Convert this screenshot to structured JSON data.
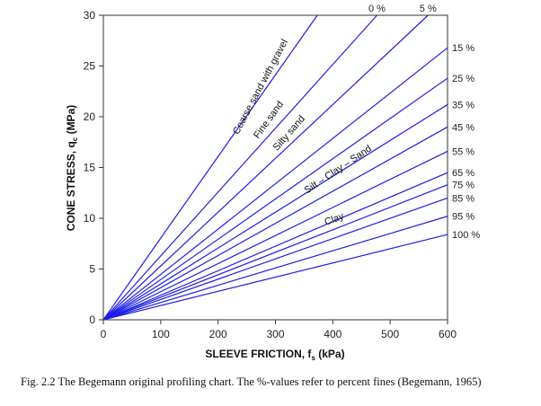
{
  "chart_data": {
    "type": "line",
    "xlabel": {
      "main": "SLEEVE FRICTION, f",
      "sub": "s",
      "unit": " (kPa)"
    },
    "ylabel": {
      "main": "CONE STRESS, q",
      "sub": "c",
      "unit": "  (MPa)"
    },
    "xlim": [
      0,
      600
    ],
    "ylim": [
      0,
      30
    ],
    "xticks": [
      0,
      100,
      200,
      300,
      400,
      500,
      600
    ],
    "yticks": [
      0,
      5,
      10,
      15,
      20,
      25,
      30
    ],
    "series": [
      {
        "name": "",
        "end": [
          373,
          30
        ]
      },
      {
        "name": "0 %",
        "end": [
          477,
          30
        ]
      },
      {
        "name": "5 %",
        "end": [
          566,
          30
        ]
      },
      {
        "name": "15 %",
        "end": [
          600,
          26.8
        ]
      },
      {
        "name": "25 %",
        "end": [
          600,
          23.8
        ]
      },
      {
        "name": "35 %",
        "end": [
          600,
          21.2
        ]
      },
      {
        "name": "45 %",
        "end": [
          600,
          19.0
        ]
      },
      {
        "name": "55 %",
        "end": [
          600,
          16.6
        ]
      },
      {
        "name": "65 %",
        "end": [
          600,
          14.5
        ]
      },
      {
        "name": "75 %",
        "end": [
          600,
          13.3
        ]
      },
      {
        "name": "85 %",
        "end": [
          600,
          12.0
        ]
      },
      {
        "name": "95 %",
        "end": [
          600,
          10.2
        ]
      },
      {
        "name": "100 %",
        "end": [
          600,
          8.4
        ]
      }
    ],
    "annotations": [
      {
        "text": "Coarse sand with gravel",
        "x": 235,
        "y": 18.2,
        "angle": -62
      },
      {
        "text": "Fine sand",
        "x": 270,
        "y": 17.8,
        "angle": -54
      },
      {
        "text": "Silty sand",
        "x": 303,
        "y": 16.6,
        "angle": -49
      },
      {
        "text": "Silt – Clay – Sand",
        "x": 355,
        "y": 12.4,
        "angle": -34
      },
      {
        "text": "Clay",
        "x": 388,
        "y": 9.3,
        "angle": -20
      }
    ]
  },
  "caption": "Fig. 2.2  The Begemann original profiling chart.  The %-values refer to percent fines (Begemann, 1965)"
}
